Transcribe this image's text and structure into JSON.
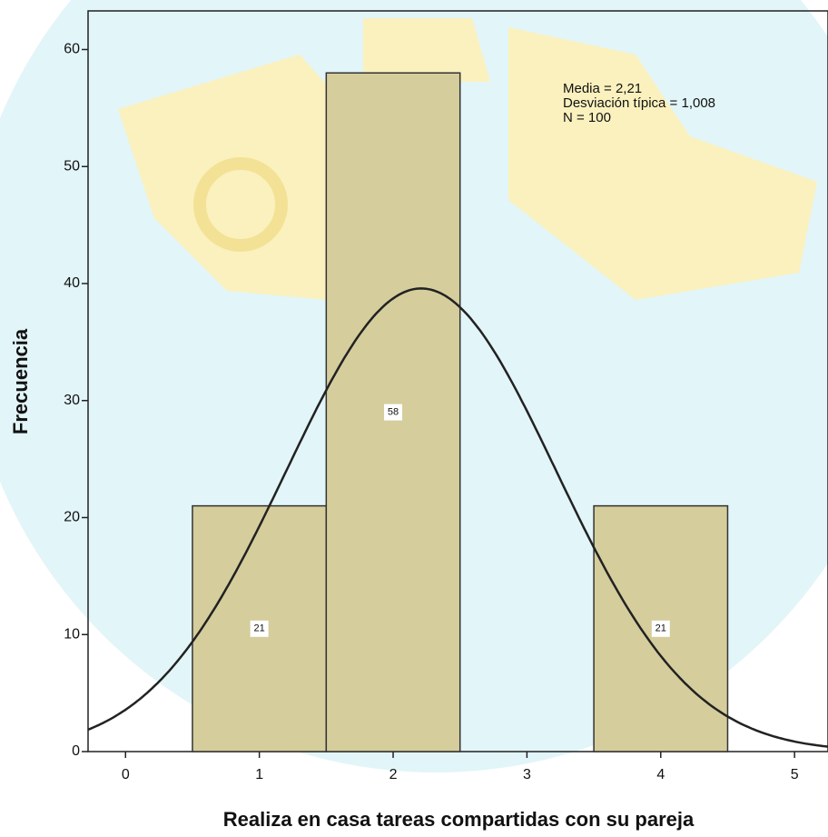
{
  "chart_data": {
    "type": "histogram",
    "xlabel": "Realiza en casa tareas compartidas con su pareja",
    "ylabel": "Frecuencia",
    "bins": [
      0.5,
      1.5,
      2.5,
      3.5,
      4.5
    ],
    "counts": [
      21,
      58,
      0,
      21
    ],
    "color": "#d5cd9c",
    "xlim": [
      -0.28,
      5.25
    ],
    "ylim": [
      0,
      63.3
    ],
    "xticks": [
      0,
      1,
      2,
      3,
      4,
      5
    ],
    "yticks": [
      0,
      10,
      20,
      30,
      40,
      50,
      60
    ],
    "annotations": [
      "Media = 2,21",
      "Desviación típica = 1,008",
      "N = 100"
    ],
    "normal_curve": {
      "mean": 2.21,
      "sd": 1.008,
      "n": 100
    }
  }
}
